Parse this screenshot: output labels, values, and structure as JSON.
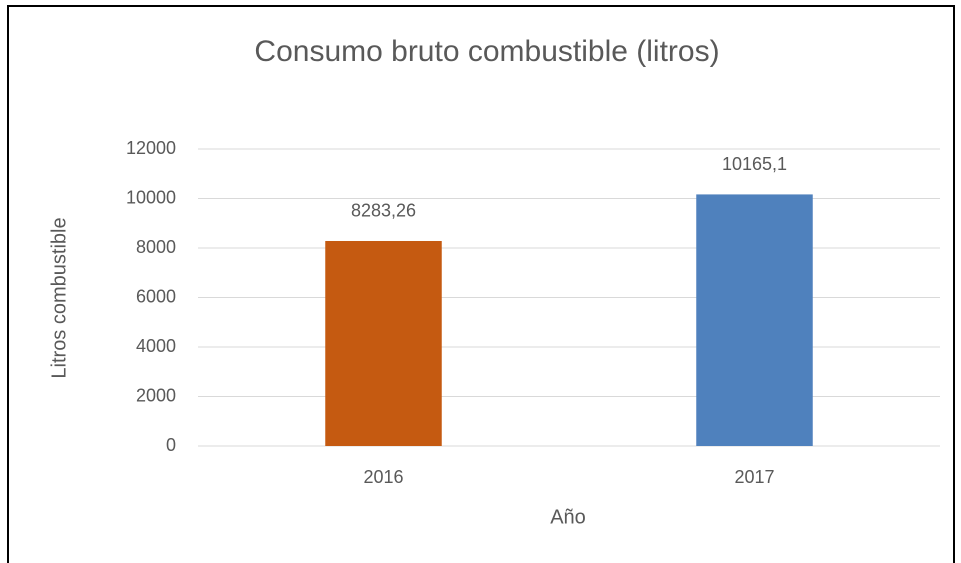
{
  "chart_data": {
    "type": "bar",
    "title": "Consumo bruto combustible (litros)",
    "x_label": "Año",
    "y_label": "Litros combustible",
    "categories": [
      "2016",
      "2017"
    ],
    "values": [
      8283.26,
      10165.1
    ],
    "value_labels": [
      "8283,26",
      "10165,1"
    ],
    "colors": [
      "#c55a11",
      "#4f81bd"
    ],
    "ylim": [
      0,
      12000
    ],
    "yticks": [
      0,
      2000,
      4000,
      6000,
      8000,
      10000,
      12000
    ],
    "grid": true
  }
}
